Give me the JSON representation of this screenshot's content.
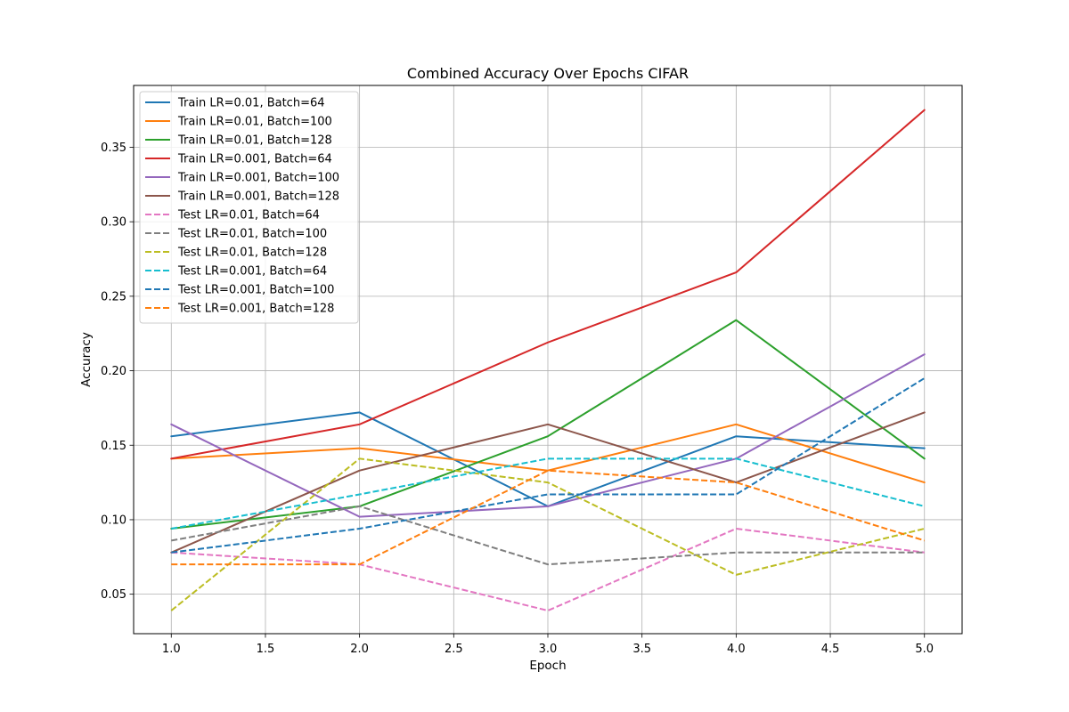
{
  "chart_data": {
    "type": "line",
    "title": "Combined Accuracy Over Epochs CIFAR",
    "xlabel": "Epoch",
    "ylabel": "Accuracy",
    "xlim": [
      0.8,
      5.2
    ],
    "ylim": [
      0.0235,
      0.3915
    ],
    "xticks": [
      "1.0",
      "1.5",
      "2.0",
      "2.5",
      "3.0",
      "3.5",
      "4.0",
      "4.5",
      "5.0"
    ],
    "xtick_values": [
      1.0,
      1.5,
      2.0,
      2.5,
      3.0,
      3.5,
      4.0,
      4.5,
      5.0
    ],
    "yticks": [
      "0.05",
      "0.10",
      "0.15",
      "0.20",
      "0.25",
      "0.30",
      "0.35"
    ],
    "ytick_values": [
      0.05,
      0.1,
      0.15,
      0.2,
      0.25,
      0.3,
      0.35
    ],
    "grid": true,
    "legend_position": "top-left",
    "x": [
      1,
      2,
      3,
      4,
      5
    ],
    "series": [
      {
        "name": "Train LR=0.01, Batch=64",
        "color": "#1f77b4",
        "dash": "solid",
        "values": [
          0.156,
          0.172,
          0.109,
          0.156,
          0.148
        ]
      },
      {
        "name": "Train LR=0.01, Batch=100",
        "color": "#ff7f0e",
        "dash": "solid",
        "values": [
          0.141,
          0.148,
          0.133,
          0.164,
          0.125
        ]
      },
      {
        "name": "Train LR=0.01, Batch=128",
        "color": "#2ca02c",
        "dash": "solid",
        "values": [
          0.094,
          0.109,
          0.156,
          0.234,
          0.141
        ]
      },
      {
        "name": "Train LR=0.001, Batch=64",
        "color": "#d62728",
        "dash": "solid",
        "values": [
          0.141,
          0.164,
          0.219,
          0.266,
          0.375
        ]
      },
      {
        "name": "Train LR=0.001, Batch=100",
        "color": "#9467bd",
        "dash": "solid",
        "values": [
          0.164,
          0.102,
          0.109,
          0.141,
          0.211
        ]
      },
      {
        "name": "Train LR=0.001, Batch=128",
        "color": "#8c564b",
        "dash": "solid",
        "values": [
          0.078,
          0.133,
          0.164,
          0.125,
          0.172
        ]
      },
      {
        "name": "Test LR=0.01, Batch=64",
        "color": "#e377c2",
        "dash": "dashed",
        "values": [
          0.078,
          0.07,
          0.039,
          0.094,
          0.078
        ]
      },
      {
        "name": "Test LR=0.01, Batch=100",
        "color": "#7f7f7f",
        "dash": "dashed",
        "values": [
          0.086,
          0.109,
          0.07,
          0.078,
          0.078
        ]
      },
      {
        "name": "Test LR=0.01, Batch=128",
        "color": "#bcbd22",
        "dash": "dashed",
        "values": [
          0.039,
          0.141,
          0.125,
          0.063,
          0.094
        ]
      },
      {
        "name": "Test LR=0.001, Batch=64",
        "color": "#17becf",
        "dash": "dashed",
        "values": [
          0.094,
          0.117,
          0.141,
          0.141,
          0.109
        ]
      },
      {
        "name": "Test LR=0.001, Batch=100",
        "color": "#1f77b4",
        "dash": "dashed",
        "values": [
          0.078,
          0.094,
          0.117,
          0.117,
          0.195
        ]
      },
      {
        "name": "Test LR=0.001, Batch=128",
        "color": "#ff7f0e",
        "dash": "dashed",
        "values": [
          0.07,
          0.07,
          0.133,
          0.125,
          0.086
        ]
      }
    ]
  }
}
